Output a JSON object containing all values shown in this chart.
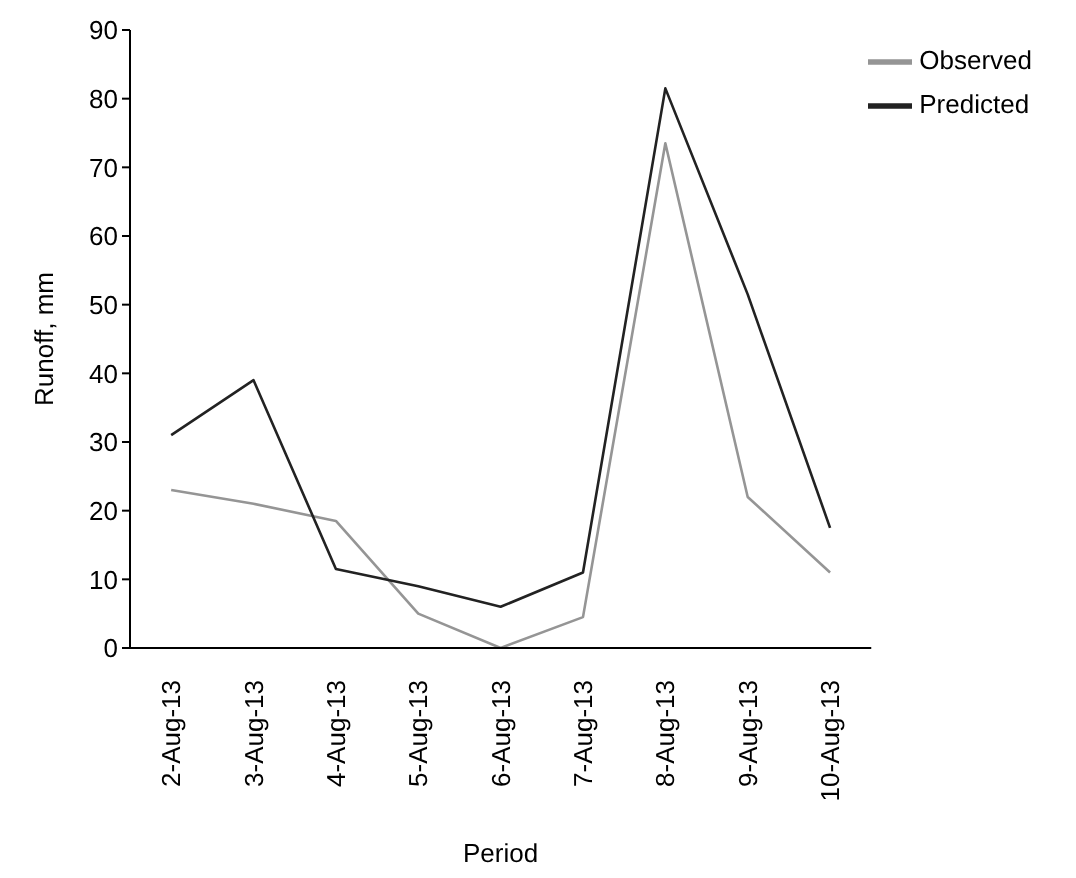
{
  "chart_data": {
    "type": "line",
    "xlabel": "Period",
    "ylabel": "Runoff, mm",
    "categories": [
      "2-Aug-13",
      "3-Aug-13",
      "4-Aug-13",
      "5-Aug-13",
      "6-Aug-13",
      "7-Aug-13",
      "8-Aug-13",
      "9-Aug-13",
      "10-Aug-13"
    ],
    "series": [
      {
        "name": "Observed",
        "color": "#959595",
        "values": [
          23,
          21,
          18.5,
          5,
          0,
          4.5,
          73.5,
          22,
          11
        ]
      },
      {
        "name": "Predicted",
        "color": "#222222",
        "values": [
          31,
          39,
          11.5,
          9,
          6,
          11,
          81.5,
          51.5,
          17.5
        ]
      }
    ],
    "ylim": [
      0,
      90
    ],
    "yticks": [
      0,
      10,
      20,
      30,
      40,
      50,
      60,
      70,
      80,
      90
    ],
    "grid": false,
    "legend": "top right",
    "marker": "none",
    "line_style": "solid"
  }
}
